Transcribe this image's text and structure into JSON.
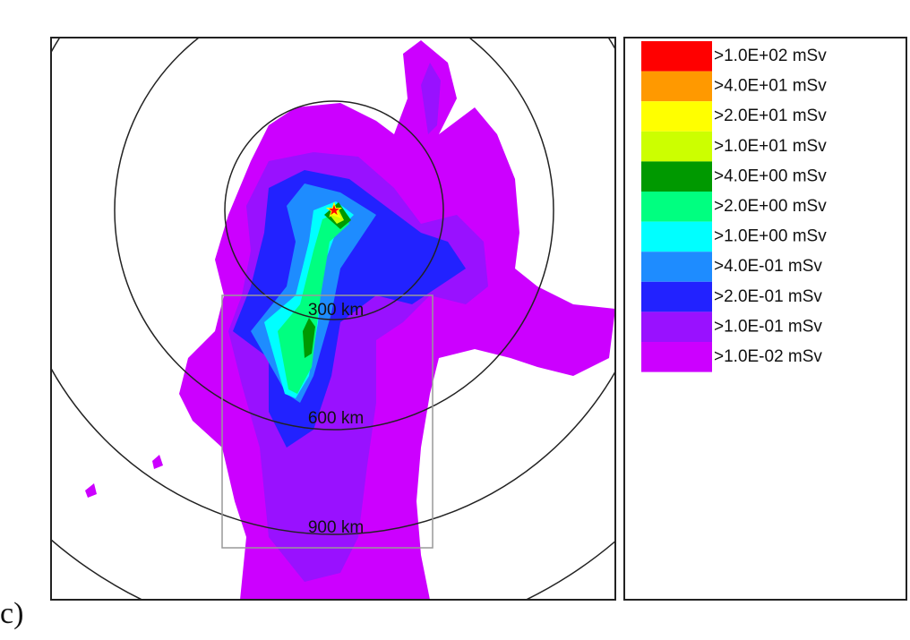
{
  "panel_label": "c)",
  "rings": [
    {
      "label": "300 km"
    },
    {
      "label": "600 km"
    },
    {
      "label": "900 km"
    }
  ],
  "legend": [
    {
      "label": ">1.0E+02 mSv",
      "color": "#ff0000"
    },
    {
      "label": ">4.0E+01 mSv",
      "color": "#ff9900"
    },
    {
      "label": ">2.0E+01 mSv",
      "color": "#ffff00"
    },
    {
      "label": ">1.0E+01 mSv",
      "color": "#ccff00"
    },
    {
      "label": ">4.0E+00 mSv",
      "color": "#009900"
    },
    {
      "label": ">2.0E+00 mSv",
      "color": "#00ff80"
    },
    {
      "label": ">1.0E+00 mSv",
      "color": "#00ffff"
    },
    {
      "label": ">4.0E-01 mSv",
      "color": "#1e8cff"
    },
    {
      "label": ">2.0E-01 mSv",
      "color": "#2222ff"
    },
    {
      "label": ">1.0E-01 mSv",
      "color": "#9911ff"
    },
    {
      "label": ">1.0E-02 mSv",
      "color": "#cc00ff"
    }
  ]
}
